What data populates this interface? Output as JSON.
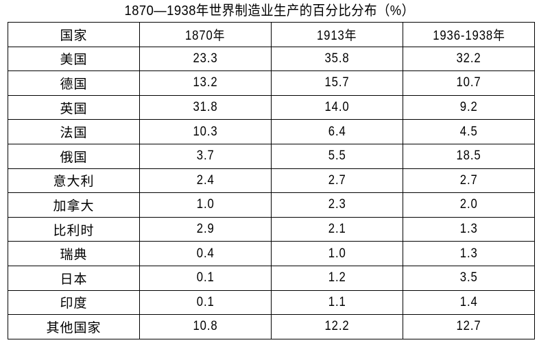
{
  "document": {
    "title": "1870—1938年世界制造业生产的百分比分布（%）"
  },
  "table": {
    "headers": [
      "国家",
      "1870年",
      "1913年",
      "1936-1938年"
    ],
    "rows": [
      {
        "country": "美国",
        "y1870": "23.3",
        "y1913": "35.8",
        "y1936_1938": "32.2"
      },
      {
        "country": "德国",
        "y1870": "13.2",
        "y1913": "15.7",
        "y1936_1938": "10.7"
      },
      {
        "country": "英国",
        "y1870": "31.8",
        "y1913": "14.0",
        "y1936_1938": "9.2"
      },
      {
        "country": "法国",
        "y1870": "10.3",
        "y1913": "6.4",
        "y1936_1938": "4.5"
      },
      {
        "country": "俄国",
        "y1870": "3.7",
        "y1913": "5.5",
        "y1936_1938": "18.5"
      },
      {
        "country": "意大利",
        "y1870": "2.4",
        "y1913": "2.7",
        "y1936_1938": "2.7"
      },
      {
        "country": "加拿大",
        "y1870": "1.0",
        "y1913": "2.3",
        "y1936_1938": "2.0"
      },
      {
        "country": "比利时",
        "y1870": "2.9",
        "y1913": "2.1",
        "y1936_1938": "1.3"
      },
      {
        "country": "瑞典",
        "y1870": "0.4",
        "y1913": "1.0",
        "y1936_1938": "1.3"
      },
      {
        "country": "日本",
        "y1870": "0.1",
        "y1913": "1.2",
        "y1936_1938": "3.5"
      },
      {
        "country": "印度",
        "y1870": "0.1",
        "y1913": "1.1",
        "y1936_1938": "1.4"
      },
      {
        "country": "其他国家",
        "y1870": "10.8",
        "y1913": "12.2",
        "y1936_1938": "12.7"
      }
    ]
  },
  "colors": {
    "text": "#000000",
    "border": "#000000",
    "background": "#ffffff"
  }
}
